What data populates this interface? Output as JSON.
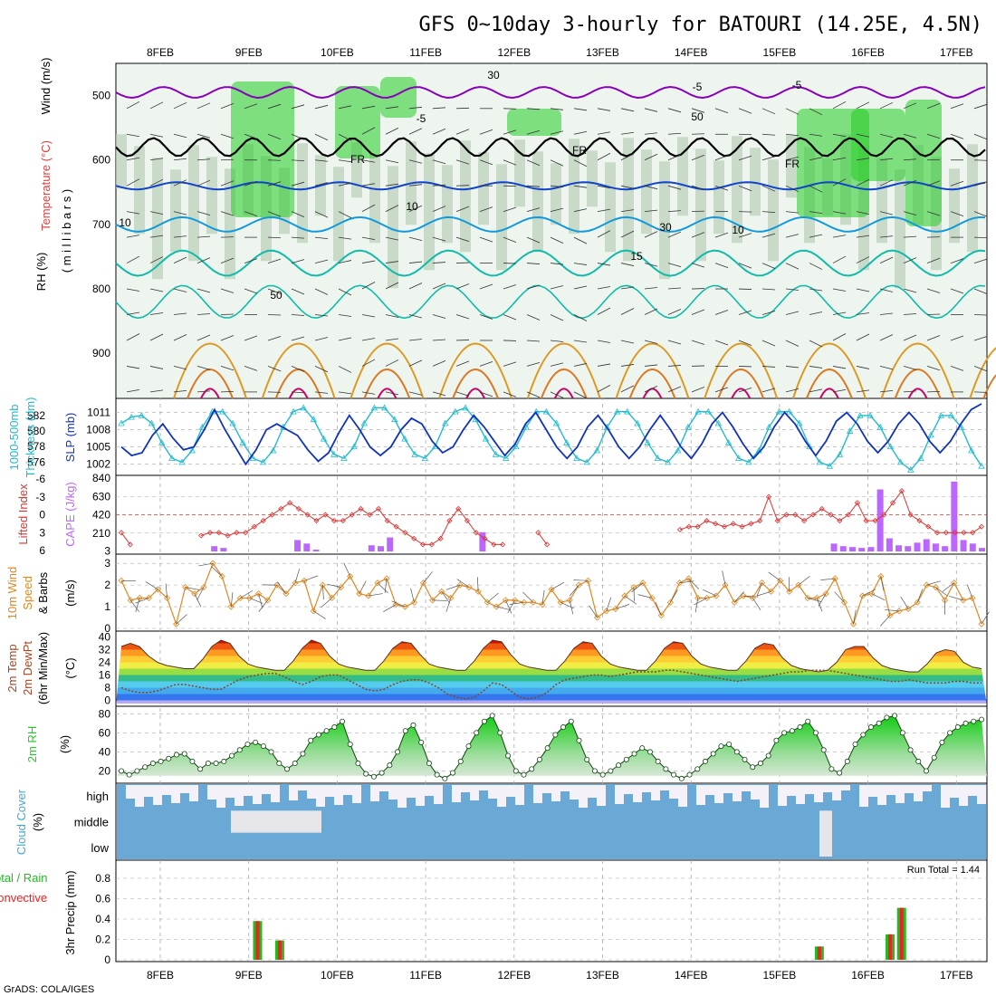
{
  "title": "GFS 0~10day 3-hourly for BATOURI (14.25E, 4.5N)",
  "footer": "GrADS: COLA/IGES",
  "run_total": "Run Total = 1.44",
  "colors": {
    "grid": "#aaaaaa",
    "rh_green": "#22cc22",
    "temp_purple": "#8800bb",
    "freezing": "#000000",
    "temp_blue": "#1144cc",
    "temp_cyan": "#1199dd",
    "temp_teal": "#11bbaa",
    "temp_orange": "#dd9922",
    "temp_red": "#cc0066",
    "thickness": "#22bbcc",
    "slp": "#1133bb",
    "lifted": "#dd3333",
    "cape": "#bb66ff",
    "wind": "#dd8822",
    "rh2m": "#22cc22",
    "cloud": "#6aa8d6",
    "cloud_gap": "#f4f2f8",
    "precip_total": "#22bb22",
    "precip_conv": "#ee2222"
  },
  "panels": {
    "upper": {
      "ylabel_rh": "RH (%)",
      "ylabel_temp": "Temperature (°C)",
      "ylabel_wind": "Wind (m/s)",
      "ylabel_mb": "( m i l l i b a r s )",
      "contour_labels": [
        "-5",
        "-5",
        "-5",
        "FR",
        "FR",
        "FR",
        "10",
        "10",
        "10",
        "15",
        "30",
        "30",
        "50",
        "50"
      ]
    },
    "thickness": {
      "ylabel_a": "1000-500mb",
      "ylabel_b": "Thickness (dm)",
      "ylabel_c": "SLP (mb)"
    },
    "cape": {
      "ylabel_a": "Lifted Index",
      "ylabel_b": "CAPE (J/kg)"
    },
    "wind": {
      "ylabel_a": "10m Wind",
      "ylabel_b": "Speed",
      "ylabel_c": "& Barbs",
      "ylabel_d": "(m/s)"
    },
    "temp": {
      "ylabel_a": "2m Temp",
      "ylabel_b": "2m DewPt",
      "ylabel_c": "(6hr Min/Max)",
      "ylabel_d": "(°C)"
    },
    "rh": {
      "ylabel_a": "2m RH",
      "ylabel_b": "(%)"
    },
    "cloud": {
      "ylabel_a": "Cloud Cover",
      "ylabel_b": "(%)",
      "levels": [
        "high",
        "middle",
        "low"
      ]
    },
    "precip": {
      "ylabel_a": "Total / Rain",
      "ylabel_b": "Convective",
      "ylabel_c": "3hr Precip (mm)"
    }
  },
  "chart_data": [
    {
      "type": "heatmap",
      "name": "upper-air",
      "x_dates": [
        "8FEB",
        "9FEB",
        "10FEB",
        "11FEB",
        "12FEB",
        "13FEB",
        "14FEB",
        "15FEB",
        "16FEB",
        "17FEB"
      ],
      "ylabel": "millibars",
      "y_ticks": [
        500,
        600,
        700,
        800,
        900
      ],
      "ylim": [
        970,
        450
      ],
      "isotherms_c": [
        -5,
        0,
        5,
        10,
        15,
        20,
        25,
        30
      ],
      "freezing_level_mb": 580,
      "rh_shading_levels": [
        30,
        50,
        70,
        90
      ]
    },
    {
      "type": "line",
      "name": "thickness-slp",
      "thickness_ticks": [
        576,
        578,
        580,
        582
      ],
      "slp_ticks": [
        1002,
        1005,
        1008,
        1011
      ],
      "thickness_range": [
        575,
        583.5
      ],
      "slp_range": [
        1001,
        1012.5
      ],
      "thickness": [
        581,
        581.8,
        582,
        581,
        578.5,
        576.5,
        576,
        577.5,
        580.5,
        582.5,
        582.5,
        581,
        578.5,
        576.5,
        576,
        577.5,
        580.5,
        582.5,
        583,
        581.5,
        579,
        577,
        576.5,
        578,
        581,
        583,
        583,
        581.5,
        579,
        577,
        576.5,
        578,
        581,
        582.5,
        583,
        581.5,
        579,
        577,
        576.5,
        578,
        580.5,
        582.5,
        582.5,
        581,
        578.5,
        576.5,
        576,
        577.5,
        580.5,
        582.5,
        582.5,
        581,
        578.5,
        576.5,
        576,
        577.5,
        580.5,
        582.5,
        582.5,
        581,
        578.5,
        576.5,
        576,
        577.5,
        580.5,
        582.5,
        582.5,
        581,
        578,
        576,
        575.5,
        577,
        580,
        582,
        582,
        580.5,
        578,
        576,
        575,
        576.5,
        579.5,
        582,
        582,
        580.5,
        577.5,
        575.5
      ],
      "slp": [
        1005,
        1003.5,
        1004,
        1007,
        1009,
        1006.5,
        1004.5,
        1005,
        1008,
        1011.5,
        1008,
        1005,
        1002,
        1004.5,
        1008,
        1009,
        1008,
        1007,
        1004.5,
        1002.5,
        1004,
        1007.5,
        1010.5,
        1008,
        1005,
        1003.5,
        1005,
        1008,
        1010,
        1009,
        1006,
        1004,
        1005,
        1008,
        1010.5,
        1008.5,
        1006,
        1003.5,
        1005.5,
        1009,
        1011,
        1008,
        1005,
        1003,
        1005,
        1008.5,
        1010.5,
        1008,
        1005,
        1003,
        1005,
        1008,
        1010.5,
        1008,
        1005,
        1003,
        1005.5,
        1009,
        1011,
        1008.5,
        1005.5,
        1003,
        1005,
        1008.5,
        1011,
        1009,
        1006,
        1003.5,
        1006,
        1009.5,
        1011,
        1009,
        1006,
        1004,
        1006,
        1009,
        1011,
        1009,
        1006,
        1004,
        1006,
        1009,
        1011.5,
        1012.5
      ]
    },
    {
      "type": "bar",
      "name": "lifted-index-cape",
      "li_ticks": [
        -3,
        0,
        3,
        6
      ],
      "cape_ticks": [
        3,
        210,
        420,
        630,
        840
      ],
      "lifted_index": [
        3,
        5,
        null,
        null,
        null,
        null,
        null,
        null,
        null,
        3.5,
        3,
        3,
        3.5,
        3,
        3,
        2,
        1,
        0,
        -1,
        -2,
        -1,
        0,
        1,
        0,
        1,
        1,
        0,
        -1,
        0,
        -1,
        1,
        2,
        3,
        4,
        5,
        5,
        4,
        1,
        -1,
        1,
        3,
        4,
        5,
        5,
        null,
        null,
        null,
        3,
        5,
        null,
        null,
        null,
        null,
        null,
        null,
        null,
        null,
        null,
        null,
        null,
        null,
        null,
        null,
        2.5,
        2,
        2,
        1,
        1.5,
        2,
        1.5,
        2,
        1.5,
        1,
        -3,
        1,
        0,
        0,
        1,
        0,
        -1,
        0,
        1,
        0,
        -2,
        1,
        1,
        0,
        -2,
        -4,
        0,
        1,
        2,
        3,
        3,
        3,
        3,
        3,
        2
      ],
      "cape": [
        0,
        0,
        0,
        0,
        0,
        0,
        0,
        0,
        0,
        0,
        60,
        40,
        0,
        0,
        0,
        0,
        0,
        0,
        0,
        130,
        90,
        20,
        0,
        0,
        0,
        0,
        0,
        70,
        60,
        160,
        0,
        0,
        0,
        0,
        0,
        0,
        0,
        0,
        0,
        220,
        0,
        0,
        0,
        0,
        0,
        0,
        0,
        0,
        0,
        0,
        0,
        0,
        0,
        0,
        0,
        0,
        0,
        0,
        0,
        0,
        0,
        0,
        0,
        0,
        0,
        0,
        0,
        0,
        0,
        0,
        0,
        0,
        0,
        0,
        0,
        0,
        0,
        90,
        60,
        50,
        40,
        50,
        710,
        150,
        70,
        60,
        100,
        140,
        90,
        60,
        800,
        130,
        90,
        40
      ]
    },
    {
      "type": "line",
      "name": "10m-wind",
      "y_ticks": [
        0,
        1,
        2,
        3
      ],
      "ylim": [
        0,
        3.3
      ],
      "speed": [
        2.2,
        1.3,
        1.4,
        1.4,
        1.8,
        1.4,
        0.2,
        1.9,
        1.6,
        1.9,
        3.0,
        2.4,
        1.0,
        1.4,
        1.4,
        1.6,
        1.3,
        2.0,
        1.6,
        2.1,
        2.2,
        0.8,
        2.0,
        1.4,
        1.9,
        2.4,
        1.6,
        1.5,
        2.1,
        2.3,
        1.1,
        1.0,
        1.2,
        2.1,
        1.3,
        1.7,
        1.4,
        2.0,
        1.9,
        1.7,
        1.2,
        1.0,
        1.3,
        1.3,
        1.2,
        1.2,
        1.1,
        1.8,
        1.2,
        1.3,
        2.0,
        2.2,
        0.5,
        0.8,
        0.9,
        1.5,
        1.9,
        2.1,
        1.4,
        0.6,
        1.2,
        2.1,
        2.3,
        1.4,
        1.4,
        1.5,
        2.0,
        1.2,
        1.5,
        1.4,
        2.1,
        1.7,
        2.2,
        1.7,
        2.0,
        1.4,
        1.4,
        1.6,
        2.3,
        1.2,
        0.2,
        1.5,
        1.6,
        2.4,
        0.6,
        0.8,
        0.9,
        1.2,
        2.0,
        1.9,
        1.3,
        2.1,
        1.3,
        1.4,
        0.2
      ]
    },
    {
      "type": "area",
      "name": "2m-temp",
      "y_ticks": [
        0,
        8,
        16,
        24,
        32,
        40
      ],
      "ylim": [
        -2,
        42
      ],
      "temp": [
        34,
        36,
        34,
        28,
        24,
        22,
        21,
        20,
        20,
        26,
        34,
        38,
        36,
        28,
        23,
        21,
        20,
        19,
        19,
        25,
        33,
        38,
        36,
        28,
        23,
        21,
        20,
        19,
        19,
        25,
        33,
        37,
        36,
        29,
        23,
        21,
        20,
        19,
        19,
        25,
        33,
        38,
        37,
        29,
        23,
        21,
        20,
        19,
        19,
        25,
        33,
        37,
        36,
        28,
        23,
        21,
        20,
        19,
        19,
        25,
        33,
        37,
        36,
        28,
        23,
        21,
        20,
        19,
        19,
        25,
        33,
        36,
        35,
        27,
        22,
        20,
        19,
        18,
        19,
        24,
        32,
        34,
        34,
        27,
        22,
        20,
        19,
        18,
        18,
        23,
        30,
        32,
        31,
        24,
        21,
        20
      ],
      "dewpt": [
        8,
        6,
        5,
        5,
        6,
        8,
        10,
        10,
        9,
        8,
        7,
        7,
        10,
        13,
        15,
        16,
        17,
        17,
        15,
        12,
        10,
        12,
        15,
        16,
        16,
        13,
        10,
        7,
        6,
        7,
        10,
        12,
        13,
        13,
        11,
        8,
        4,
        2,
        1,
        2,
        6,
        11,
        10,
        6,
        2,
        1,
        2,
        5,
        10,
        13,
        14,
        15,
        16,
        16,
        15,
        16,
        17,
        18,
        18,
        18,
        19,
        19,
        18,
        17,
        16,
        15,
        14,
        13,
        12,
        13,
        14,
        15,
        16,
        17,
        18,
        18,
        19,
        19,
        19,
        18,
        17,
        16,
        15,
        14,
        13,
        12,
        12,
        13,
        12,
        11,
        11,
        11,
        12,
        12,
        11,
        11
      ]
    },
    {
      "type": "area",
      "name": "2m-rh",
      "y_ticks": [
        20,
        40,
        60,
        80
      ],
      "ylim": [
        10,
        85
      ],
      "rh": [
        20,
        16,
        20,
        24,
        28,
        30,
        33,
        37,
        38,
        30,
        22,
        28,
        28,
        30,
        36,
        42,
        48,
        50,
        46,
        40,
        28,
        22,
        28,
        38,
        52,
        58,
        62,
        66,
        72,
        48,
        28,
        17,
        14,
        18,
        26,
        40,
        62,
        68,
        50,
        28,
        16,
        12,
        18,
        30,
        46,
        60,
        72,
        78,
        60,
        36,
        20,
        16,
        22,
        32,
        44,
        58,
        66,
        72,
        52,
        32,
        20,
        16,
        20,
        26,
        32,
        38,
        44,
        40,
        30,
        22,
        16,
        12,
        16,
        22,
        30,
        38,
        46,
        48,
        40,
        32,
        24,
        28,
        36,
        52,
        60,
        62,
        66,
        72,
        60,
        42,
        22,
        18,
        30,
        48,
        58,
        66,
        70,
        76,
        78,
        60,
        42,
        30,
        20,
        34,
        50,
        60,
        66,
        70,
        72,
        74
      ]
    },
    {
      "type": "heatmap",
      "name": "cloud-cover",
      "levels": [
        "high",
        "middle",
        "low"
      ]
    },
    {
      "type": "bar",
      "name": "3hr-precip",
      "y_ticks": [
        0,
        0.2,
        0.4,
        0.6,
        0.8
      ],
      "ylim": [
        0,
        0.96
      ],
      "run_total_mm": 1.44,
      "bars": [
        {
          "date_pos": 9.1,
          "total": 0.38,
          "convective": 0.38
        },
        {
          "date_pos": 9.35,
          "total": 0.19,
          "convective": 0.19
        },
        {
          "date_pos": 15.45,
          "total": 0.13,
          "convective": 0.13
        },
        {
          "date_pos": 16.25,
          "total": 0.25,
          "convective": 0.25
        },
        {
          "date_pos": 16.38,
          "total": 0.51,
          "convective": 0.51
        }
      ]
    }
  ]
}
